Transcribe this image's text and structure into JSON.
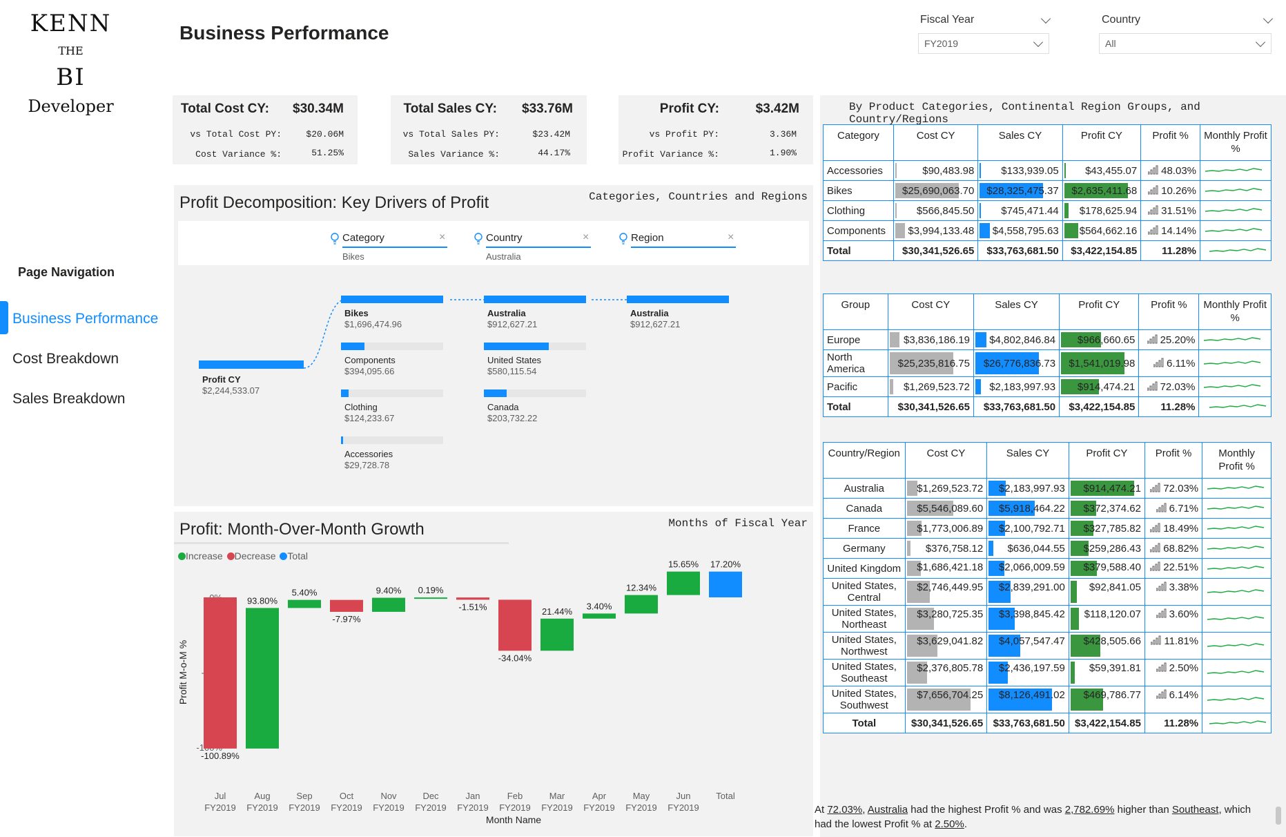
{
  "logo": {
    "line1": "KENN",
    "line2": "THE",
    "line3": "BI",
    "line4": "Developer"
  },
  "page_title": "Business Performance",
  "slicers": [
    {
      "label": "Fiscal Year",
      "value": "FY2019"
    },
    {
      "label": "Country",
      "value": "All"
    }
  ],
  "nav": {
    "title": "Page Navigation",
    "items": [
      "Business Performance",
      "Cost Breakdown",
      "Sales Breakdown"
    ],
    "active": "Business Performance"
  },
  "kpis": [
    {
      "title": "Total Cost CY:",
      "value": "$30.34M",
      "row1_label": "vs Total Cost PY:",
      "row1_value": "$20.06M",
      "row2_label": "Cost Variance %:",
      "row2_value": "51.25%"
    },
    {
      "title": "Total Sales CY:",
      "value": "$33.76M",
      "row1_label": "vs Total Sales PY:",
      "row1_value": "$23.42M",
      "row2_label": "Sales Variance %:",
      "row2_value": "44.17%"
    },
    {
      "title": "Profit CY:",
      "value": "$3.42M",
      "row1_label": "vs Profit PY:",
      "row1_value": "3.36M",
      "row2_label": "Profit Variance %:",
      "row2_value": "1.90%"
    }
  ],
  "decomp": {
    "title": "Profit Decomposition: Key Drivers of Profit",
    "subtitle": "Categories, Countries and Regions",
    "filters": [
      {
        "name": "Category",
        "value": "Bikes"
      },
      {
        "name": "Country",
        "value": "Australia"
      },
      {
        "name": "Region",
        "value": ""
      }
    ],
    "root": {
      "label": "Profit CY",
      "value": "$2,244,533.07"
    },
    "level1": [
      {
        "label": "Bikes",
        "value": "$1,696,474.96",
        "share": 1.0
      },
      {
        "label": "Components",
        "value": "$394,095.66",
        "share": 0.232
      },
      {
        "label": "Clothing",
        "value": "$124,233.67",
        "share": 0.073
      },
      {
        "label": "Accessories",
        "value": "$29,728.78",
        "share": 0.018
      }
    ],
    "level2": [
      {
        "label": "Australia",
        "value": "$912,627.21",
        "share": 1.0
      },
      {
        "label": "United States",
        "value": "$580,115.54",
        "share": 0.636
      },
      {
        "label": "Canada",
        "value": "$203,732.22",
        "share": 0.223
      }
    ],
    "level3": [
      {
        "label": "Australia",
        "value": "$912,627.21",
        "share": 1.0
      }
    ]
  },
  "chart_data": {
    "type": "waterfall",
    "title": "Profit: Month-Over-Month Growth",
    "subtitle": "Months of Fiscal Year",
    "legend": [
      "Increase",
      "Decrease",
      "Total"
    ],
    "colors": {
      "Increase": "#1aab40",
      "Decrease": "#d64550",
      "Total": "#118dff"
    },
    "ylabel": "Profit M-o-M %",
    "xlabel": "Month Name",
    "yticks": [
      "0%",
      "-50%",
      "-100%"
    ],
    "ylim": [
      -106,
      18
    ],
    "categories": [
      "Jul FY2019",
      "Aug FY2019",
      "Sep FY2019",
      "Oct FY2019",
      "Nov FY2019",
      "Dec FY2019",
      "Jan FY2019",
      "Feb FY2019",
      "Mar FY2019",
      "Apr FY2019",
      "May FY2019",
      "Jun FY2019",
      "Total"
    ],
    "month_labels": [
      "Jul",
      "Aug",
      "Sep",
      "Oct",
      "Nov",
      "Dec",
      "Jan",
      "Feb",
      "Mar",
      "Apr",
      "May",
      "Jun",
      "Total"
    ],
    "year_labels": [
      "FY2019",
      "FY2019",
      "FY2019",
      "FY2019",
      "FY2019",
      "FY2019",
      "FY2019",
      "FY2019",
      "FY2019",
      "FY2019",
      "FY2019",
      "FY2019",
      ""
    ],
    "values": [
      -100.89,
      93.8,
      5.4,
      -7.97,
      9.4,
      0.19,
      -1.51,
      -34.04,
      21.44,
      3.4,
      12.34,
      15.65,
      17.2
    ],
    "value_labels": [
      "-100.89%",
      "93.80%",
      "5.40%",
      "-7.97%",
      "9.40%",
      "0.19%",
      "-1.51%",
      "-34.04%",
      "21.44%",
      "3.40%",
      "12.34%",
      "15.65%",
      "17.20%"
    ]
  },
  "tables_title": "By Product Categories, Continental Region Groups, and Country/Regions",
  "table_category": {
    "headers": [
      "Category",
      "Cost CY",
      "Sales CY",
      "Profit CY",
      "Profit %",
      "Monthly Profit %"
    ],
    "rows": [
      {
        "name": "Accessories",
        "cost": "$90,483.98",
        "sales": "$133,939.05",
        "profit": "$43,455.07",
        "pct": "48.03%",
        "cf": 0.004,
        "sf": 0.005,
        "pf": 0.016
      },
      {
        "name": "Bikes",
        "cost": "$25,690,063.70",
        "sales": "$28,325,475.37",
        "profit": "$2,635,411.68",
        "pct": "10.26%",
        "cf": 1.0,
        "sf": 1.0,
        "pf": 1.0
      },
      {
        "name": "Clothing",
        "cost": "$566,845.50",
        "sales": "$745,471.44",
        "profit": "$178,625.94",
        "pct": "31.51%",
        "cf": 0.022,
        "sf": 0.026,
        "pf": 0.068
      },
      {
        "name": "Components",
        "cost": "$3,994,133.48",
        "sales": "$4,558,795.63",
        "profit": "$564,662.16",
        "pct": "14.14%",
        "cf": 0.155,
        "sf": 0.161,
        "pf": 0.214
      }
    ],
    "total": {
      "name": "Total",
      "cost": "$30,341,526.65",
      "sales": "$33,763,681.50",
      "profit": "$3,422,154.85",
      "pct": "11.28%"
    }
  },
  "table_group": {
    "headers": [
      "Group",
      "Cost CY",
      "Sales CY",
      "Profit CY",
      "Profit %",
      "Monthly Profit %"
    ],
    "rows": [
      {
        "name": "Europe",
        "cost": "$3,836,186.19",
        "sales": "$4,802,846.84",
        "profit": "$966,660.65",
        "pct": "25.20%",
        "cf": 0.152,
        "sf": 0.179,
        "pf": 0.627
      },
      {
        "name": "North America",
        "cost": "$25,235,816.75",
        "sales": "$26,776,836.73",
        "profit": "$1,541,019.98",
        "pct": "6.11%",
        "cf": 1.0,
        "sf": 1.0,
        "pf": 1.0
      },
      {
        "name": "Pacific",
        "cost": "$1,269,523.72",
        "sales": "$2,183,997.93",
        "profit": "$914,474.21",
        "pct": "72.03%",
        "cf": 0.05,
        "sf": 0.082,
        "pf": 0.593
      }
    ],
    "total": {
      "name": "Total",
      "cost": "$30,341,526.65",
      "sales": "$33,763,681.50",
      "profit": "$3,422,154.85",
      "pct": "11.28%"
    }
  },
  "table_country": {
    "headers": [
      "Country/Region",
      "Cost CY",
      "Sales CY",
      "Profit CY",
      "Profit %",
      "Monthly Profit %"
    ],
    "rows": [
      {
        "name": "Australia",
        "cost": "$1,269,523.72",
        "sales": "$2,183,997.93",
        "profit": "$914,474.21",
        "pct": "72.03%",
        "cf": 0.166,
        "sf": 0.269,
        "pf": 1.0
      },
      {
        "name": "Canada",
        "cost": "$5,546,089.60",
        "sales": "$5,918,464.22",
        "profit": "$372,374.62",
        "pct": "6.71%",
        "cf": 0.724,
        "sf": 0.728,
        "pf": 0.407
      },
      {
        "name": "France",
        "cost": "$1,773,006.89",
        "sales": "$2,100,792.71",
        "profit": "$327,785.82",
        "pct": "18.49%",
        "cf": 0.232,
        "sf": 0.259,
        "pf": 0.358
      },
      {
        "name": "Germany",
        "cost": "$376,758.12",
        "sales": "$636,044.55",
        "profit": "$259,286.43",
        "pct": "68.82%",
        "cf": 0.049,
        "sf": 0.078,
        "pf": 0.284
      },
      {
        "name": "United Kingdom",
        "cost": "$1,686,421.18",
        "sales": "$2,066,009.59",
        "profit": "$379,588.40",
        "pct": "22.51%",
        "cf": 0.22,
        "sf": 0.254,
        "pf": 0.415
      },
      {
        "name": "United States, Central",
        "cost": "$2,746,449.95",
        "sales": "$2,839,291.00",
        "profit": "$92,841.05",
        "pct": "3.38%",
        "cf": 0.359,
        "sf": 0.35,
        "pf": 0.102
      },
      {
        "name": "United States, Northeast",
        "cost": "$3,280,725.35",
        "sales": "$3,398,845.42",
        "profit": "$118,120.07",
        "pct": "3.60%",
        "cf": 0.428,
        "sf": 0.418,
        "pf": 0.129
      },
      {
        "name": "United States, Northwest",
        "cost": "$3,629,041.82",
        "sales": "$4,057,547.47",
        "profit": "$428,505.66",
        "pct": "11.81%",
        "cf": 0.474,
        "sf": 0.5,
        "pf": 0.469
      },
      {
        "name": "United States, Southeast",
        "cost": "$2,376,805.78",
        "sales": "$2,436,197.59",
        "profit": "$59,391.81",
        "pct": "2.50%",
        "cf": 0.31,
        "sf": 0.3,
        "pf": 0.065
      },
      {
        "name": "United States, Southwest",
        "cost": "$7,656,704.25",
        "sales": "$8,126,491.02",
        "profit": "$469,786.77",
        "pct": "6.14%",
        "cf": 1.0,
        "sf": 1.0,
        "pf": 0.514
      }
    ],
    "total": {
      "name": "Total",
      "cost": "$30,341,526.65",
      "sales": "$33,763,681.50",
      "profit": "$3,422,154.85",
      "pct": "11.28%"
    }
  },
  "narrative": {
    "prefix": "At ",
    "v1": "72.03%",
    "s1": ", ",
    "v2": "Australia",
    "s2": " had the highest Profit % and was ",
    "v3": "2,782.69%",
    "s3": " higher than ",
    "v4": "Southeast",
    "s4": ", which had the lowest Profit % at ",
    "v5": "2.50%",
    "s5": "."
  }
}
